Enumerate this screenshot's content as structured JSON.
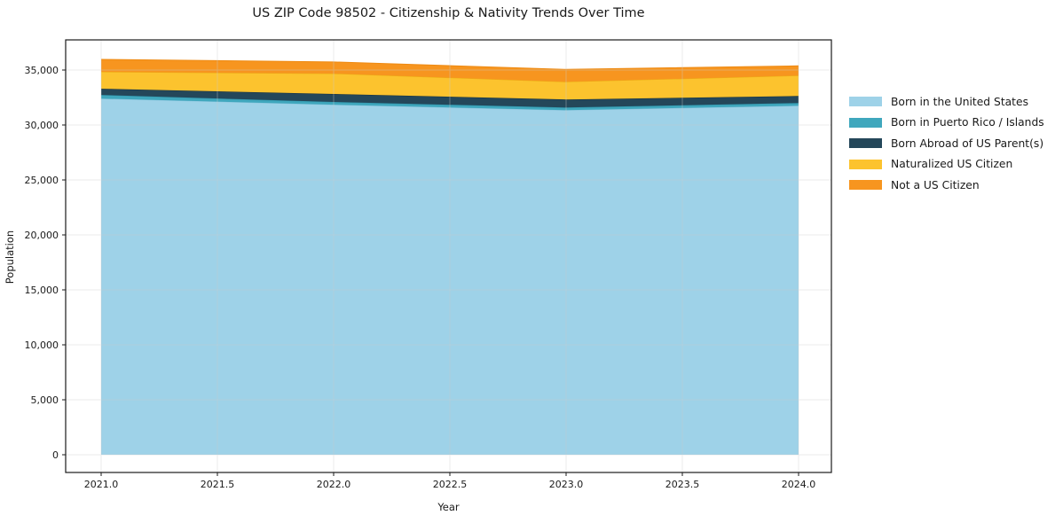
{
  "figure": {
    "title": "US ZIP Code 98502 - Citizenship & Nativity Trends Over Time",
    "background": "#ffffff",
    "spine_color": "#1a1a1a",
    "grid_color": "#cccccc",
    "text_color": "#1a1a1a"
  },
  "chart_data": {
    "type": "area",
    "stacked": true,
    "title": "US ZIP Code 98502 - Citizenship & Nativity Trends Over Time",
    "xlabel": "Year",
    "ylabel": "Population",
    "grid": true,
    "legend_position": "right-outside",
    "x": [
      2021,
      2022,
      2023,
      2024
    ],
    "xtick_values": [
      2021.0,
      2021.5,
      2022.0,
      2022.5,
      2023.0,
      2023.5,
      2024.0
    ],
    "xtick_labels": [
      "2021.0",
      "2021.5",
      "2022.0",
      "2022.5",
      "2023.0",
      "2023.5",
      "2024.0"
    ],
    "ytick_values": [
      0,
      5000,
      10000,
      15000,
      20000,
      25000,
      30000,
      35000
    ],
    "ytick_labels": [
      "0",
      "5,000",
      "10,000",
      "15,000",
      "20,000",
      "25,000",
      "30,000",
      "35,000"
    ],
    "xlim": [
      2020.85,
      2024.14
    ],
    "ylim": [
      -1600,
      37700
    ],
    "series": [
      {
        "name": "Born in the United States",
        "color": "#9ed2e8",
        "edge": "#86c3dc",
        "values": [
          32400,
          31850,
          31350,
          31750
        ]
      },
      {
        "name": "Born in Puerto Rico / Islands",
        "color": "#3fa7bd",
        "edge": "#2e93a9",
        "values": [
          330,
          250,
          240,
          250
        ]
      },
      {
        "name": "Born Abroad of US Parent(s)",
        "color": "#24475a",
        "edge": "#16303f",
        "values": [
          570,
          720,
          730,
          640
        ]
      },
      {
        "name": "Naturalized US Citizen",
        "color": "#fcc32e",
        "edge": "#ebae14",
        "values": [
          1540,
          1860,
          1610,
          1860
        ]
      },
      {
        "name": "Not a US Citizen",
        "color": "#f7951f",
        "edge": "#ee8a12",
        "values": [
          1130,
          1050,
          1130,
          880
        ]
      }
    ]
  }
}
